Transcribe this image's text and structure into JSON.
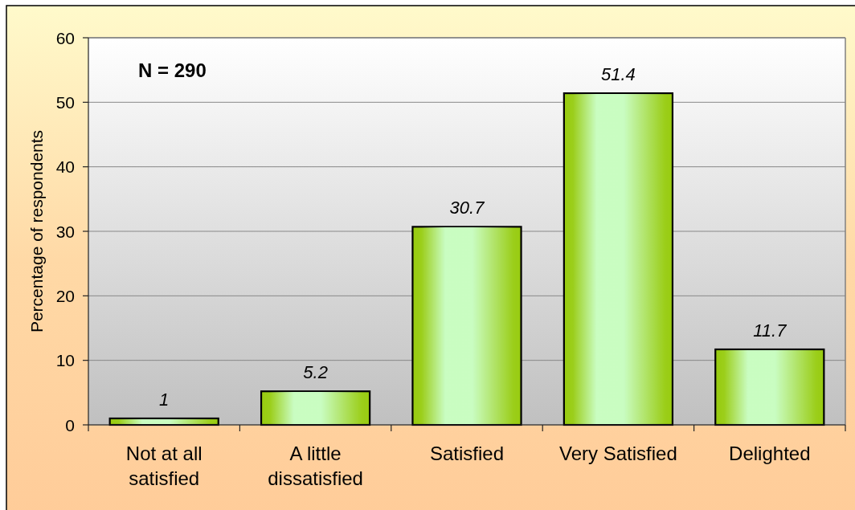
{
  "chart_data": {
    "type": "bar",
    "ylabel": "Percentage of respondents",
    "categories": [
      "Not at all satisfied",
      "A little dissatisfied",
      "Satisfied",
      "Very Satisfied",
      "Delighted"
    ],
    "values": [
      1,
      5.2,
      30.7,
      51.4,
      11.7
    ],
    "color": "#99cc11",
    "ylim": [
      0,
      60
    ],
    "yticks": [
      0,
      10,
      20,
      30,
      40,
      50,
      60
    ],
    "grid": "y",
    "data_labels": true,
    "annotations": [
      "N = 290"
    ]
  }
}
